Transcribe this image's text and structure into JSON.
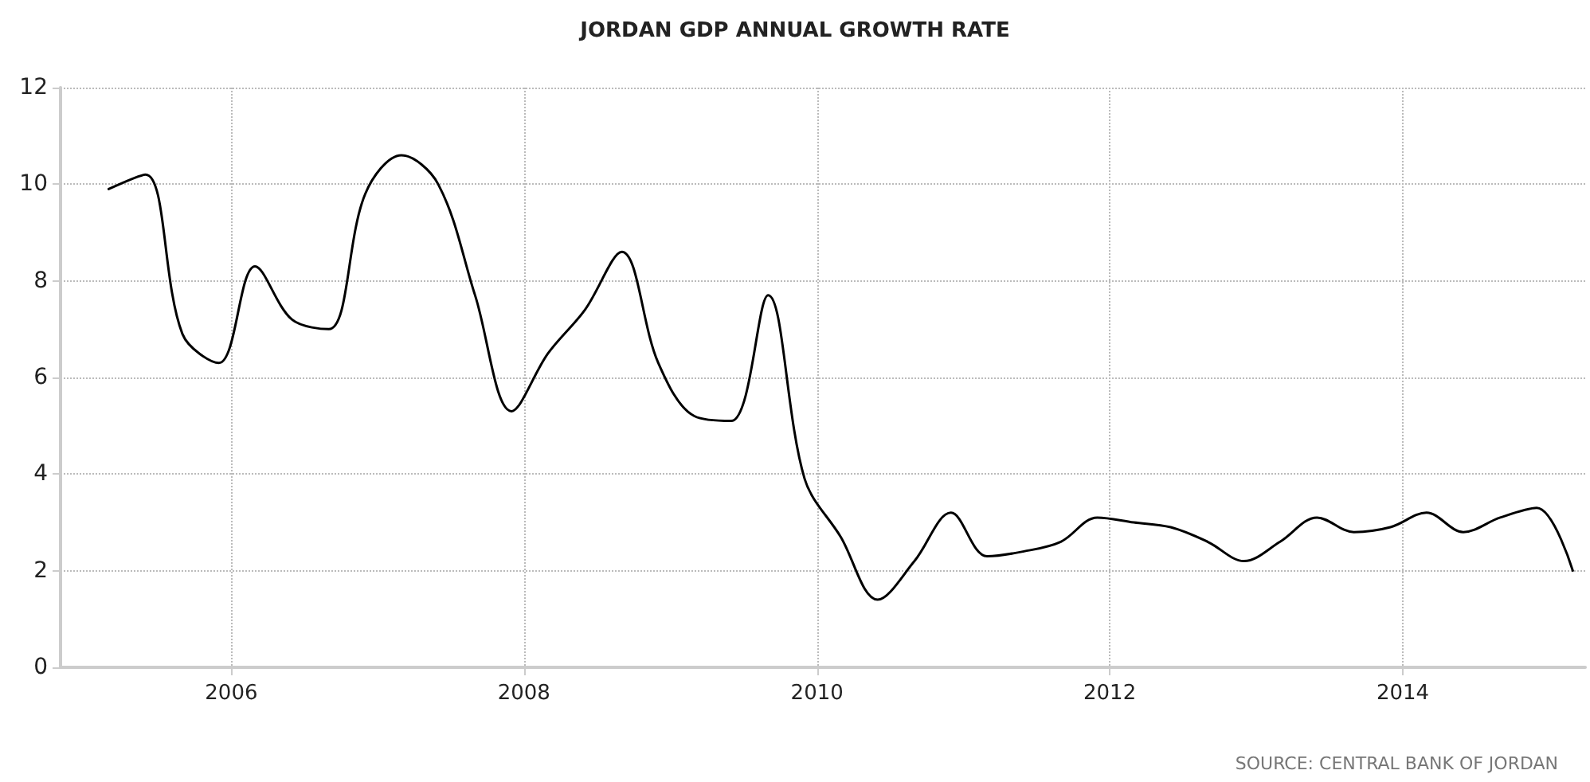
{
  "chart_data": {
    "type": "line",
    "title": "JORDAN GDP ANNUAL GROWTH RATE",
    "x": [
      "2005-03",
      "2005-06",
      "2005-09",
      "2005-12",
      "2006-03",
      "2006-06",
      "2006-09",
      "2006-12",
      "2007-03",
      "2007-06",
      "2007-09",
      "2007-12",
      "2008-03",
      "2008-06",
      "2008-09",
      "2008-12",
      "2009-03",
      "2009-06",
      "2009-09",
      "2009-12",
      "2010-03",
      "2010-06",
      "2010-09",
      "2010-12",
      "2011-03",
      "2011-06",
      "2011-09",
      "2011-12",
      "2012-03",
      "2012-06",
      "2012-09",
      "2012-12",
      "2013-03",
      "2013-06",
      "2013-09",
      "2013-12",
      "2014-03",
      "2014-06",
      "2014-09",
      "2014-12",
      "2015-03"
    ],
    "series": [
      {
        "color": "#000000",
        "values": [
          9.9,
          10.2,
          6.9,
          6.3,
          8.3,
          7.2,
          7.0,
          9.8,
          10.6,
          10.0,
          7.7,
          5.3,
          6.5,
          7.4,
          8.6,
          6.3,
          5.2,
          5.1,
          7.7,
          3.9,
          2.7,
          1.4,
          2.2,
          3.2,
          2.3,
          2.4,
          2.6,
          3.1,
          3.0,
          2.9,
          2.6,
          2.2,
          2.6,
          3.1,
          2.8,
          2.9,
          3.2,
          2.8,
          3.1,
          3.3,
          2.0
        ]
      }
    ],
    "xlim": [
      "2004-11",
      "2015-04"
    ],
    "xticks": [
      "2006",
      "2008",
      "2010",
      "2012",
      "2014"
    ],
    "ylim": [
      0,
      12
    ],
    "yticks": [
      0,
      2,
      4,
      6,
      8,
      10,
      12
    ],
    "grid": true,
    "marker": "none",
    "line_style": "solid",
    "annotations": [
      "SOURCE: CENTRAL BANK OF JORDAN"
    ]
  }
}
